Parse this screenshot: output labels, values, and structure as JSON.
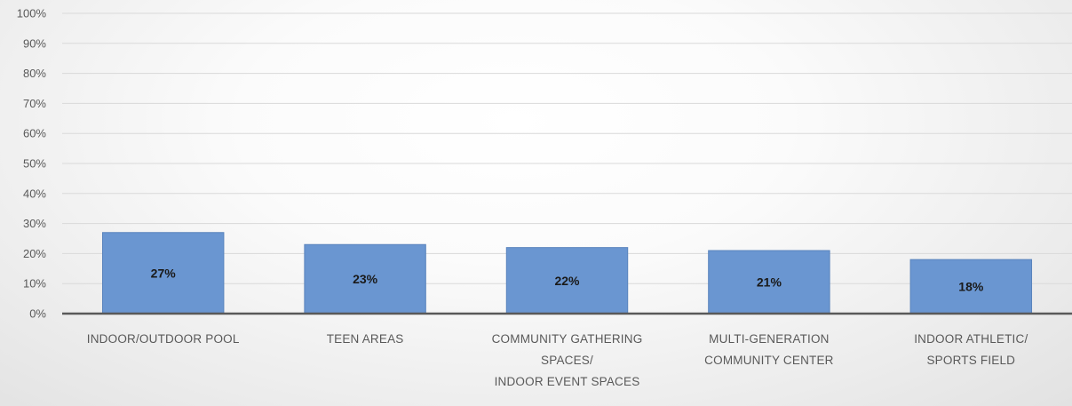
{
  "chart_data": {
    "type": "bar",
    "title": "",
    "xlabel": "",
    "ylabel": "",
    "ylim": [
      0,
      100
    ],
    "yticks": [
      "0%",
      "10%",
      "20%",
      "30%",
      "40%",
      "50%",
      "60%",
      "70%",
      "80%",
      "90%",
      "100%"
    ],
    "grid": true,
    "categories": [
      [
        "INDOOR/OUTDOOR POOL"
      ],
      [
        "TEEN AREAS"
      ],
      [
        "COMMUNITY GATHERING",
        "SPACES/",
        "INDOOR EVENT SPACES"
      ],
      [
        "MULTI-GENERATION",
        "COMMUNITY CENTER"
      ],
      [
        "INDOOR ATHLETIC/",
        "SPORTS FIELD"
      ]
    ],
    "values": [
      27,
      23,
      22,
      21,
      18
    ],
    "data_labels": [
      "27%",
      "23%",
      "22%",
      "21%",
      "18%"
    ],
    "colors": {
      "bar_fill": "#6a96d1",
      "bar_stroke": "#5a84bd",
      "grid": "#d9d9d9",
      "axis": "#595959"
    }
  }
}
